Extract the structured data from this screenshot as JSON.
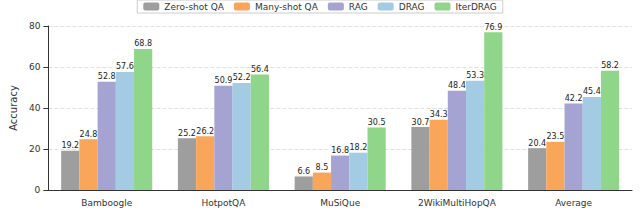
{
  "chart_data": {
    "type": "bar",
    "y_label": "Accuracy",
    "categories": [
      "Bamboogle",
      "HotpotQA",
      "MuSiQue",
      "2WikiMultiHopQA",
      "Average"
    ],
    "series": [
      {
        "name": "Zero-shot QA",
        "color": "#9e9e9e",
        "values": [
          19.2,
          25.2,
          6.6,
          30.7,
          20.4
        ]
      },
      {
        "name": "Many-shot QA",
        "color": "#f9a65a",
        "values": [
          24.8,
          26.2,
          8.5,
          34.3,
          23.5
        ]
      },
      {
        "name": "RAG",
        "color": "#a5a3d1",
        "values": [
          52.8,
          50.9,
          16.8,
          48.4,
          42.2
        ]
      },
      {
        "name": "DRAG",
        "color": "#a3cce4",
        "values": [
          57.6,
          52.2,
          18.2,
          53.3,
          45.4
        ]
      },
      {
        "name": "IterDRAG",
        "color": "#8fd68a",
        "values": [
          68.8,
          56.4,
          30.5,
          76.9,
          58.2
        ]
      }
    ],
    "ylim": [
      0,
      80
    ],
    "yticks": [
      0,
      20,
      40,
      60,
      80
    ],
    "grid": true,
    "legend": "top",
    "data_labels": true
  }
}
